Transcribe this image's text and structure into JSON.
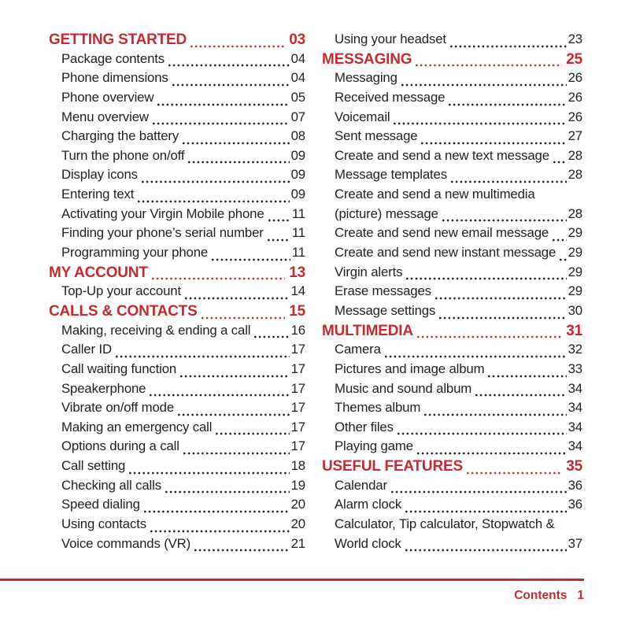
{
  "colors": {
    "accent": "#C42A30",
    "body_text": "#221E1F"
  },
  "footer": {
    "label": "Contents",
    "page_number": "1"
  },
  "toc": {
    "columns": [
      {
        "side": "left",
        "entries": [
          {
            "kind": "section",
            "label": "GETTING STARTED",
            "page": "03"
          },
          {
            "kind": "item",
            "label": "Package contents",
            "page": "04"
          },
          {
            "kind": "item",
            "label": "Phone dimensions",
            "page": "04"
          },
          {
            "kind": "item",
            "label": "Phone overview",
            "page": "05"
          },
          {
            "kind": "item",
            "label": "Menu overview",
            "page": "07"
          },
          {
            "kind": "item",
            "label": "Charging the battery",
            "page": "08"
          },
          {
            "kind": "item",
            "label": "Turn the phone on/off",
            "page": "09"
          },
          {
            "kind": "item",
            "label": "Display icons",
            "page": "09"
          },
          {
            "kind": "item",
            "label": "Entering text",
            "page": "09"
          },
          {
            "kind": "item",
            "label": "Activating your Virgin Mobile phone",
            "page": "11"
          },
          {
            "kind": "item",
            "label": "Finding your phone’s serial number",
            "page": "11"
          },
          {
            "kind": "item",
            "label": "Programming your phone",
            "page": "11"
          },
          {
            "kind": "section",
            "label": "MY ACCOUNT",
            "page": "13"
          },
          {
            "kind": "item",
            "label": "Top-Up your account",
            "page": "14"
          },
          {
            "kind": "section",
            "label": "CALLS & CONTACTS",
            "page": "15"
          },
          {
            "kind": "item",
            "label": "Making, receiving & ending a call",
            "page": "16"
          },
          {
            "kind": "item",
            "label": "Caller ID",
            "page": "17"
          },
          {
            "kind": "item",
            "label": "Call waiting function",
            "page": "17"
          },
          {
            "kind": "item",
            "label": "Speakerphone",
            "page": "17"
          },
          {
            "kind": "item",
            "label": "Vibrate on/off mode",
            "page": "17"
          },
          {
            "kind": "item",
            "label": "Making an emergency call",
            "page": "17"
          },
          {
            "kind": "item",
            "label": "Options during a call",
            "page": "17"
          },
          {
            "kind": "item",
            "label": "Call setting",
            "page": "18"
          },
          {
            "kind": "item",
            "label": "Checking all calls",
            "page": "19"
          },
          {
            "kind": "item",
            "label": "Speed dialing",
            "page": "20"
          },
          {
            "kind": "item",
            "label": "Using contacts",
            "page": "20"
          },
          {
            "kind": "item",
            "label": "Voice commands (VR)",
            "page": "21"
          }
        ]
      },
      {
        "side": "right",
        "entries": [
          {
            "kind": "item",
            "label": "Using your headset",
            "page": "23"
          },
          {
            "kind": "section",
            "label": "MESSAGING",
            "page": "25"
          },
          {
            "kind": "item",
            "label": "Messaging",
            "page": "26"
          },
          {
            "kind": "item",
            "label": "Received message",
            "page": "26"
          },
          {
            "kind": "item",
            "label": "Voicemail",
            "page": "26"
          },
          {
            "kind": "item",
            "label": "Sent message",
            "page": "27"
          },
          {
            "kind": "item",
            "label": "Create and send a new text message",
            "page": "28"
          },
          {
            "kind": "item",
            "label": "Message templates",
            "page": "28"
          },
          {
            "kind": "item",
            "label": "Create and send a new multimedia",
            "page": null
          },
          {
            "kind": "item",
            "label": "(picture) message",
            "page": "28"
          },
          {
            "kind": "item",
            "label": "Create and send new email message",
            "page": "29"
          },
          {
            "kind": "item",
            "label": "Create and send new instant message",
            "page": "29"
          },
          {
            "kind": "item",
            "label": "Virgin alerts",
            "page": "29"
          },
          {
            "kind": "item",
            "label": "Erase messages",
            "page": "29"
          },
          {
            "kind": "item",
            "label": "Message settings",
            "page": "30"
          },
          {
            "kind": "section",
            "label": "MULTIMEDIA",
            "page": "31"
          },
          {
            "kind": "item",
            "label": "Camera",
            "page": "32"
          },
          {
            "kind": "item",
            "label": "Pictures and image album",
            "page": "33"
          },
          {
            "kind": "item",
            "label": "Music and sound album",
            "page": "34"
          },
          {
            "kind": "item",
            "label": "Themes album",
            "page": "34"
          },
          {
            "kind": "item",
            "label": "Other files",
            "page": "34"
          },
          {
            "kind": "item",
            "label": "Playing game",
            "page": "34"
          },
          {
            "kind": "section",
            "label": "USEFUL FEATURES",
            "page": "35"
          },
          {
            "kind": "item",
            "label": "Calendar",
            "page": "36"
          },
          {
            "kind": "item",
            "label": "Alarm clock",
            "page": "36"
          },
          {
            "kind": "item",
            "label": "Calculator, Tip calculator, Stopwatch &",
            "page": null
          },
          {
            "kind": "item",
            "label": "World clock",
            "page": "37"
          }
        ]
      }
    ]
  }
}
